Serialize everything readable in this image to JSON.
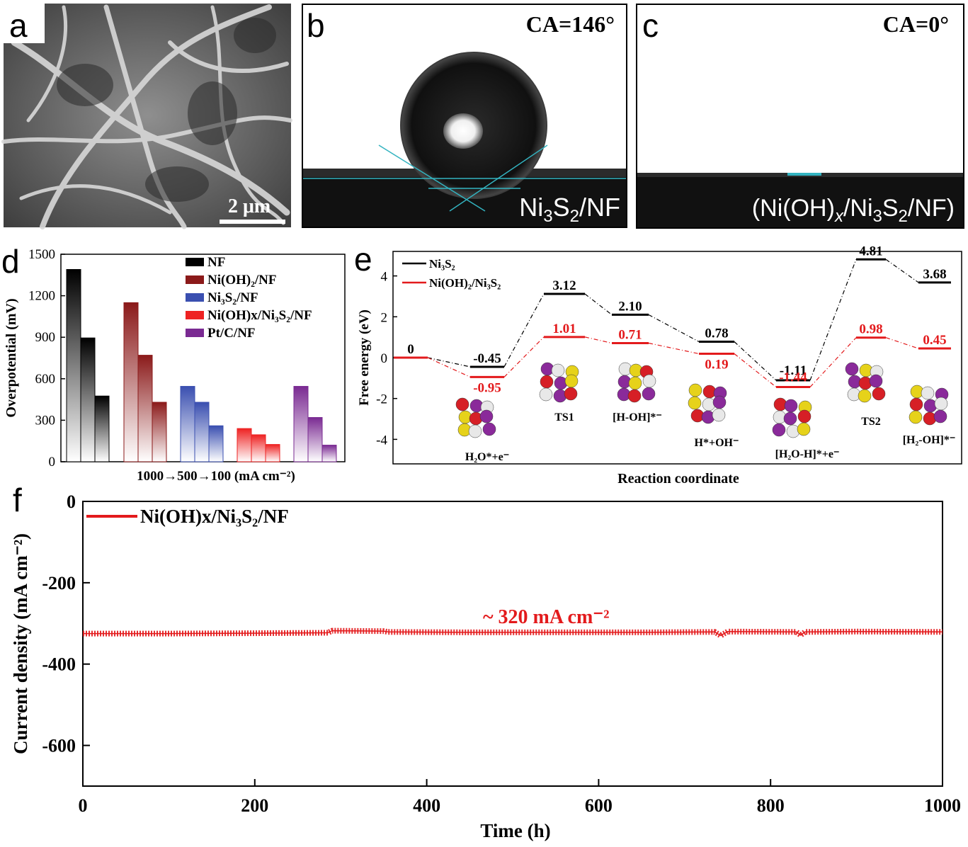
{
  "panels": {
    "a": {
      "letter": "a",
      "scalebar": "2 μm"
    },
    "b": {
      "letter": "b",
      "ca": "CA=146°",
      "sample_main": "Ni",
      "sample_sub1": "3",
      "sample_mid": "S",
      "sample_sub2": "2",
      "sample_end": "/NF"
    },
    "c": {
      "letter": "c",
      "ca": "CA=0°",
      "sample_p1": "(Ni(OH)",
      "sample_x": "x",
      "sample_p2": "/Ni",
      "sample_sub1": "3",
      "sample_mid": "S",
      "sample_sub2": "2",
      "sample_end": "/NF)"
    },
    "d": {
      "letter": "d"
    },
    "e": {
      "letter": "e"
    },
    "f": {
      "letter": "f"
    }
  },
  "chart_data": [
    {
      "id": "d",
      "type": "bar",
      "ylabel": "Overpotential (mV)",
      "xlabel": "1000→500→100 (mA cm⁻²)",
      "ylim": [
        0,
        1500
      ],
      "yticks": [
        0,
        300,
        600,
        900,
        1200,
        1500
      ],
      "groups_label_each": [
        "1000",
        "500",
        "100"
      ],
      "series": [
        {
          "name": "NF",
          "color": "#000000",
          "values": [
            1390,
            895,
            475
          ]
        },
        {
          "name": "Ni(OH)₂/NF",
          "color": "#8b1a1a",
          "values": [
            1150,
            770,
            430
          ]
        },
        {
          "name": "Ni₃S₂/NF",
          "color": "#3a4fb0",
          "values": [
            545,
            430,
            260
          ]
        },
        {
          "name": "Ni(OH)x/Ni₃S₂/NF",
          "color": "#ee2222",
          "values": [
            240,
            195,
            125
          ]
        },
        {
          "name": "Pt/C/NF",
          "color": "#7a2a92",
          "values": [
            545,
            320,
            120
          ]
        }
      ]
    },
    {
      "id": "e",
      "type": "line",
      "xlabel": "Reaction coordinate",
      "ylabel": "Free energy (eV)",
      "ylim": [
        -5.2,
        5.2
      ],
      "yticks": [
        -4,
        -2,
        0,
        2,
        4
      ],
      "states": [
        "",
        "H₂O*+e⁻",
        "TS1",
        "[H-OH]*⁻",
        "H*+OH⁻",
        "[H₂O-H]*+e⁻",
        "TS2",
        "[H₂-OH]*⁻"
      ],
      "series": [
        {
          "name": "Ni₃S₂",
          "color": "#000000",
          "values": [
            0,
            -0.45,
            3.12,
            2.1,
            0.78,
            -1.11,
            4.81,
            3.68
          ],
          "labels": [
            "0",
            "-0.45",
            "3.12",
            "2.10",
            "0.78",
            "-1.11",
            "4.81",
            "3.68"
          ]
        },
        {
          "name": "Ni(OH)₂/Ni₃S₂",
          "color": "#e31a1c",
          "values": [
            0,
            -0.95,
            1.01,
            0.71,
            0.19,
            -1.44,
            0.98,
            0.45
          ],
          "labels": [
            "",
            "-0.95",
            "1.01",
            "0.71",
            "0.19",
            "-1.44",
            "0.98",
            "0.45"
          ]
        }
      ]
    },
    {
      "id": "f",
      "type": "line",
      "xlabel": "Time (h)",
      "ylabel": "Current density (mA cm⁻²)",
      "xlim": [
        0,
        1000
      ],
      "ylim": [
        -700,
        0
      ],
      "xticks": [
        0,
        200,
        400,
        600,
        800,
        1000
      ],
      "yticks": [
        0,
        -200,
        -400,
        -600
      ],
      "annotation": "~ 320 mA cm⁻²",
      "series": [
        {
          "name": "Ni(OH)x/Ni₃S₂/NF",
          "color": "#e31a1c",
          "x": [
            0,
            100,
            200,
            285,
            290,
            350,
            355,
            450,
            550,
            650,
            735,
            742,
            750,
            830,
            835,
            840,
            900,
            1000
          ],
          "y": [
            -325,
            -325,
            -324,
            -323,
            -318,
            -319,
            -321,
            -322,
            -322,
            -322,
            -321,
            -330,
            -320,
            -321,
            -329,
            -321,
            -320,
            -321
          ]
        }
      ]
    }
  ]
}
